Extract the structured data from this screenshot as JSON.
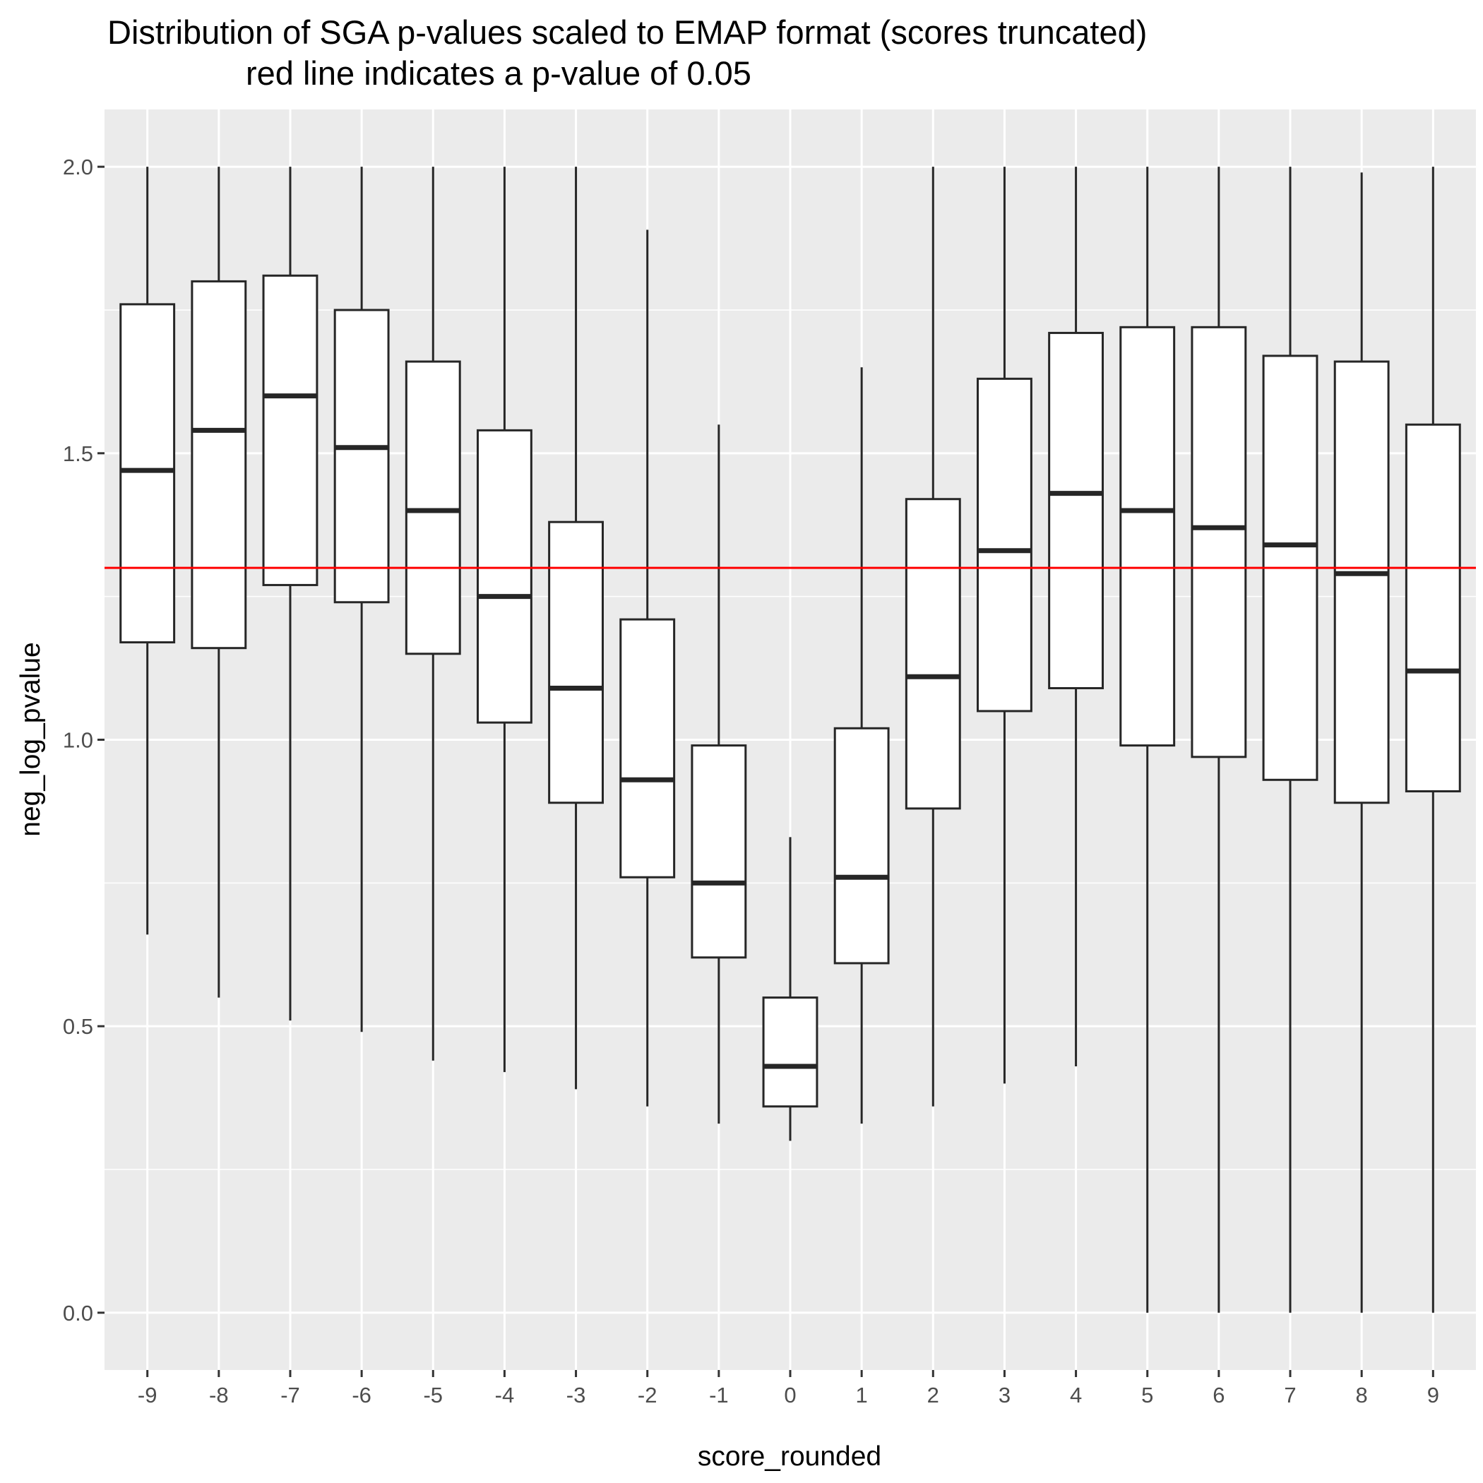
{
  "chart_data": {
    "type": "boxplot",
    "title_line1": "Distribution of SGA p-values scaled to EMAP format (scores truncated)",
    "title_line2": "red line indicates a p-value of 0.05",
    "xlabel": "score_rounded",
    "ylabel": "neg_log_pvalue",
    "ylim": [
      -0.1,
      2.1
    ],
    "yticks": [
      0.0,
      0.5,
      1.0,
      1.5,
      2.0
    ],
    "ytick_labels": [
      "0.0",
      "0.5",
      "1.0",
      "1.5",
      "2.0"
    ],
    "reference_line": {
      "y": 1.3,
      "color": "#ff0000"
    },
    "grid": true,
    "colors": {
      "panel": "#ebebeb",
      "grid": "#ffffff",
      "box_fill": "#ffffff",
      "box_stroke": "#262626"
    },
    "boxes": [
      {
        "x": "-9",
        "whisker_low": 0.66,
        "q1": 1.17,
        "median": 1.47,
        "q3": 1.76,
        "whisker_high": 2.0
      },
      {
        "x": "-8",
        "whisker_low": 0.55,
        "q1": 1.16,
        "median": 1.54,
        "q3": 1.8,
        "whisker_high": 2.0
      },
      {
        "x": "-7",
        "whisker_low": 0.51,
        "q1": 1.27,
        "median": 1.6,
        "q3": 1.81,
        "whisker_high": 2.0
      },
      {
        "x": "-6",
        "whisker_low": 0.49,
        "q1": 1.24,
        "median": 1.51,
        "q3": 1.75,
        "whisker_high": 2.0
      },
      {
        "x": "-5",
        "whisker_low": 0.44,
        "q1": 1.15,
        "median": 1.4,
        "q3": 1.66,
        "whisker_high": 2.0
      },
      {
        "x": "-4",
        "whisker_low": 0.42,
        "q1": 1.03,
        "median": 1.25,
        "q3": 1.54,
        "whisker_high": 2.0
      },
      {
        "x": "-3",
        "whisker_low": 0.39,
        "q1": 0.89,
        "median": 1.09,
        "q3": 1.38,
        "whisker_high": 2.0
      },
      {
        "x": "-2",
        "whisker_low": 0.36,
        "q1": 0.76,
        "median": 0.93,
        "q3": 1.21,
        "whisker_high": 1.89
      },
      {
        "x": "-1",
        "whisker_low": 0.33,
        "q1": 0.62,
        "median": 0.75,
        "q3": 0.99,
        "whisker_high": 1.55
      },
      {
        "x": "0",
        "whisker_low": 0.3,
        "q1": 0.36,
        "median": 0.43,
        "q3": 0.55,
        "whisker_high": 0.83
      },
      {
        "x": "1",
        "whisker_low": 0.33,
        "q1": 0.61,
        "median": 0.76,
        "q3": 1.02,
        "whisker_high": 1.65
      },
      {
        "x": "2",
        "whisker_low": 0.36,
        "q1": 0.88,
        "median": 1.11,
        "q3": 1.42,
        "whisker_high": 2.0
      },
      {
        "x": "3",
        "whisker_low": 0.4,
        "q1": 1.05,
        "median": 1.33,
        "q3": 1.63,
        "whisker_high": 2.0
      },
      {
        "x": "4",
        "whisker_low": 0.43,
        "q1": 1.09,
        "median": 1.43,
        "q3": 1.71,
        "whisker_high": 2.0
      },
      {
        "x": "5",
        "whisker_low": 0.0,
        "q1": 0.99,
        "median": 1.4,
        "q3": 1.72,
        "whisker_high": 2.0
      },
      {
        "x": "6",
        "whisker_low": 0.0,
        "q1": 0.97,
        "median": 1.37,
        "q3": 1.72,
        "whisker_high": 2.0
      },
      {
        "x": "7",
        "whisker_low": 0.0,
        "q1": 0.93,
        "median": 1.34,
        "q3": 1.67,
        "whisker_high": 2.0
      },
      {
        "x": "8",
        "whisker_low": 0.0,
        "q1": 0.89,
        "median": 1.29,
        "q3": 1.66,
        "whisker_high": 1.99
      },
      {
        "x": "9",
        "whisker_low": 0.0,
        "q1": 0.91,
        "median": 1.12,
        "q3": 1.55,
        "whisker_high": 2.0
      }
    ]
  }
}
